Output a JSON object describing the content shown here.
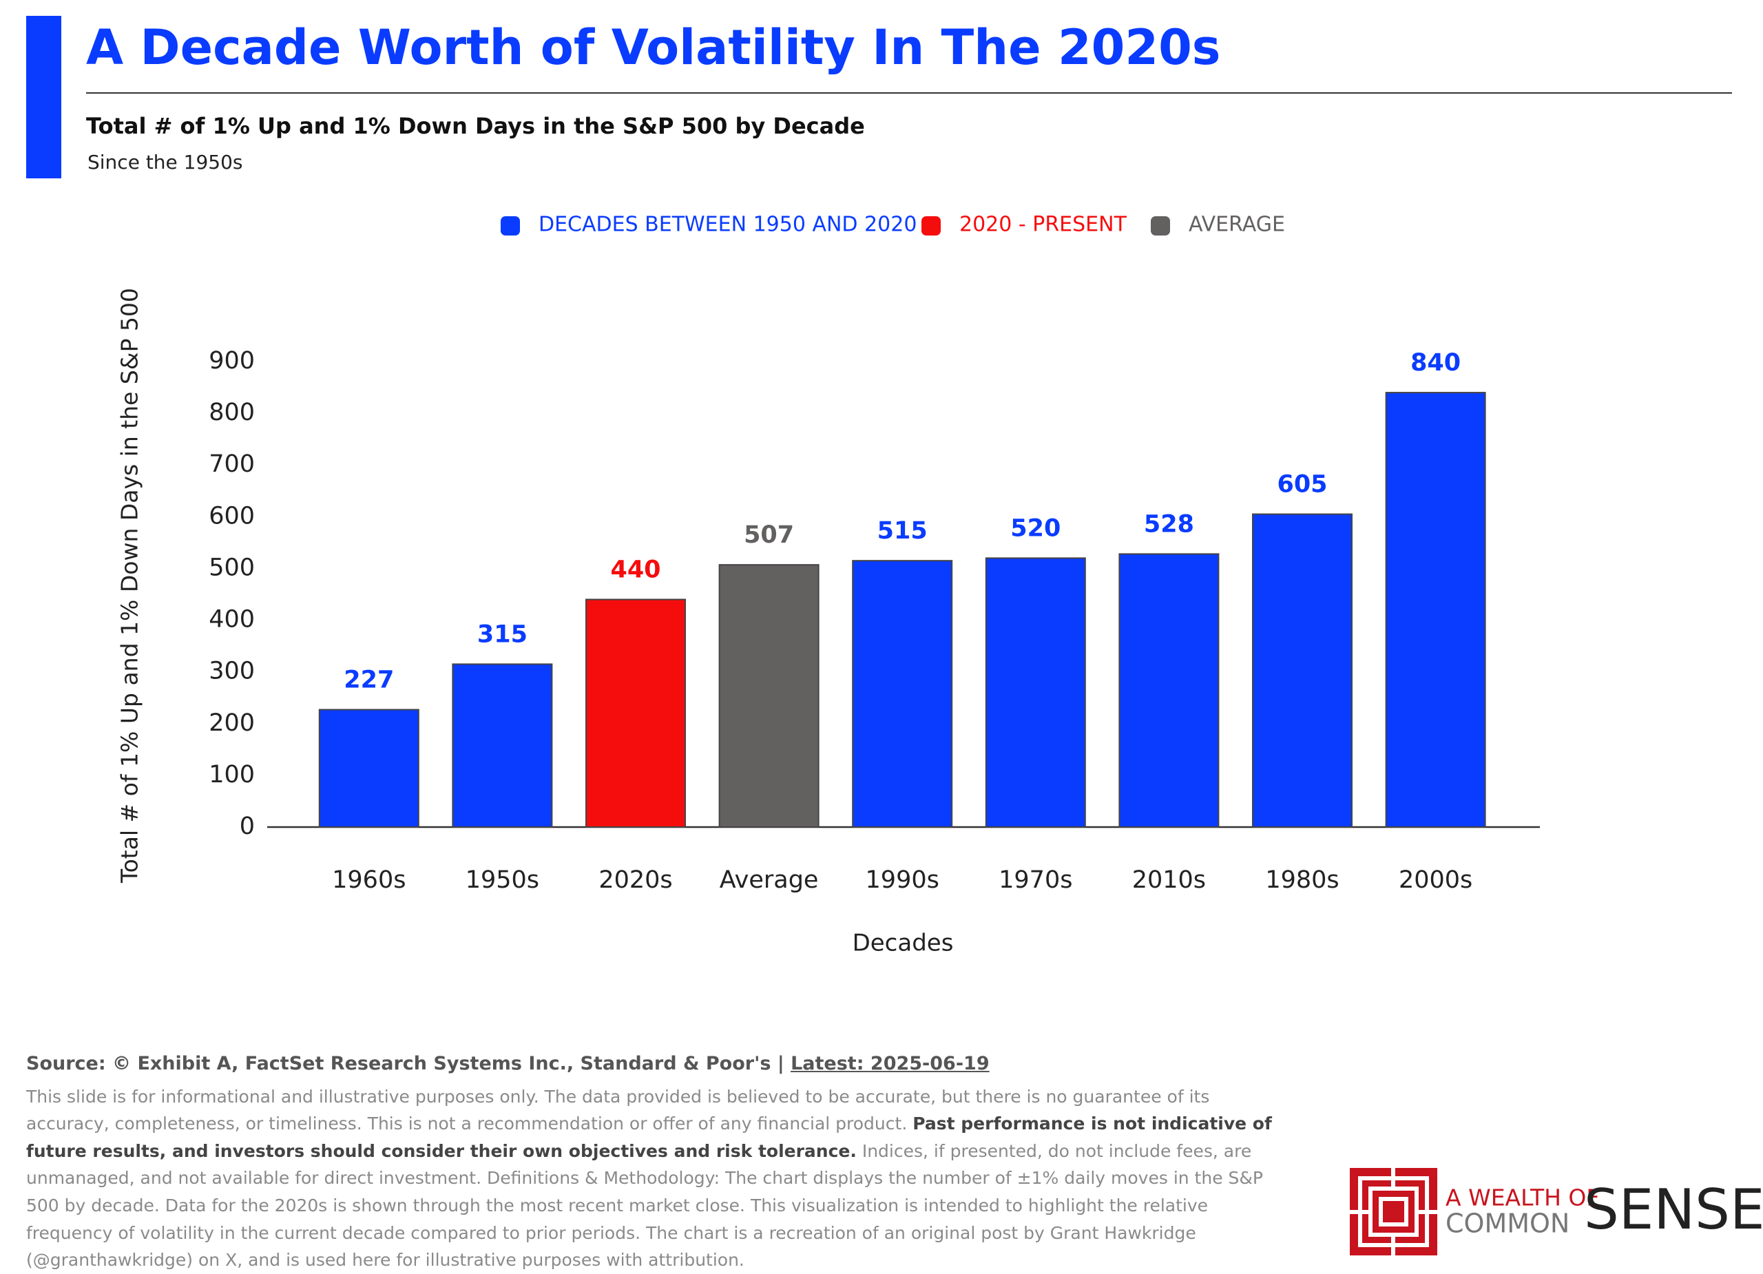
{
  "chart_data": {
    "type": "bar",
    "title": "A Decade Worth of Volatility In The 2020s",
    "subtitle": "Total # of 1% Up and 1% Down Days in the S&P 500 by Decade",
    "note": "Since the 1950s",
    "x_label": "Decades",
    "y_label": "Total # of 1% Up and 1% Down Days in the S&P 500",
    "categories": [
      "1960s",
      "1950s",
      "2020s",
      "Average",
      "1990s",
      "1970s",
      "2010s",
      "1980s",
      "2000s"
    ],
    "series": [
      {
        "name": "DECADES BETWEEN 1950 AND 2020",
        "color": "#0a3cff",
        "values": [
          227,
          315,
          null,
          null,
          515,
          520,
          528,
          605,
          840
        ]
      },
      {
        "name": "2020 - PRESENT",
        "color": "#f50d0d",
        "values": [
          null,
          null,
          440,
          null,
          null,
          null,
          null,
          null,
          null
        ]
      },
      {
        "name": "AVERAGE",
        "color": "#636060",
        "values": [
          null,
          null,
          null,
          507,
          null,
          null,
          null,
          null,
          null
        ]
      }
    ],
    "ylim": [
      0,
      900
    ],
    "yticks": [
      0,
      100,
      200,
      300,
      400,
      500,
      600,
      700,
      800,
      900
    ],
    "grid": false
  },
  "footer": {
    "source": "Source: © Exhibit A, FactSet Research Systems Inc., Standard & Poor's | ",
    "latest": "Latest: 2025-06-19",
    "disclaimer_1": "This slide is for informational and illustrative purposes only. The data provided is believed to be accurate, but there is no guarantee of its accuracy, completeness, or timeliness. This is not a recommendation or offer of any financial product. ",
    "disclaimer_bold": "Past performance is not indicative of future results, and investors should consider their own objectives and risk tolerance.",
    "disclaimer_2": " Indices, if presented, do not include fees, are unmanaged, and not available for direct investment. Definitions & Methodology: The chart displays the number of ±1% daily moves in the S&P 500 by decade. Data for the 2020s is shown through the most recent market close. This visualization is intended to highlight the relative frequency of volatility in the current decade compared to prior periods. The chart is a recreation of an original post by Grant Hawkridge (@granthawkridge) on X, and is used here for illustrative purposes with attribution."
  },
  "logo": {
    "line1": "A WEALTH OF",
    "line2": "COMMON",
    "line3": "SENSE"
  }
}
